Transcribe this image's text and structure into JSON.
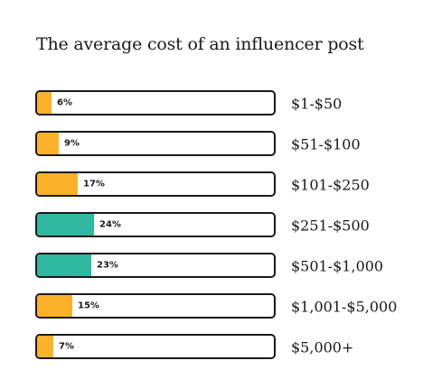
{
  "chart_data": {
    "type": "bar",
    "orientation": "horizontal",
    "title": "The average cost of an influencer post",
    "xlabel": "",
    "ylabel": "",
    "xlim": [
      0,
      100
    ],
    "grid": false,
    "legend": "none",
    "categories": [
      "$1-$50",
      "$51-$100",
      "$101-$250",
      "$251-$500",
      "$501-$1,000",
      "$1,001-$5,000",
      "$5,000+"
    ],
    "values": [
      6,
      9,
      17,
      24,
      23,
      15,
      7
    ],
    "value_labels": [
      "6%",
      "9%",
      "17%",
      "24%",
      "23%",
      "15%",
      "7%"
    ],
    "bar_colors": [
      "#FBB12A",
      "#FBB12A",
      "#FBB12A",
      "#2EB8A0",
      "#2EB8A0",
      "#FBB12A",
      "#FBB12A"
    ]
  }
}
